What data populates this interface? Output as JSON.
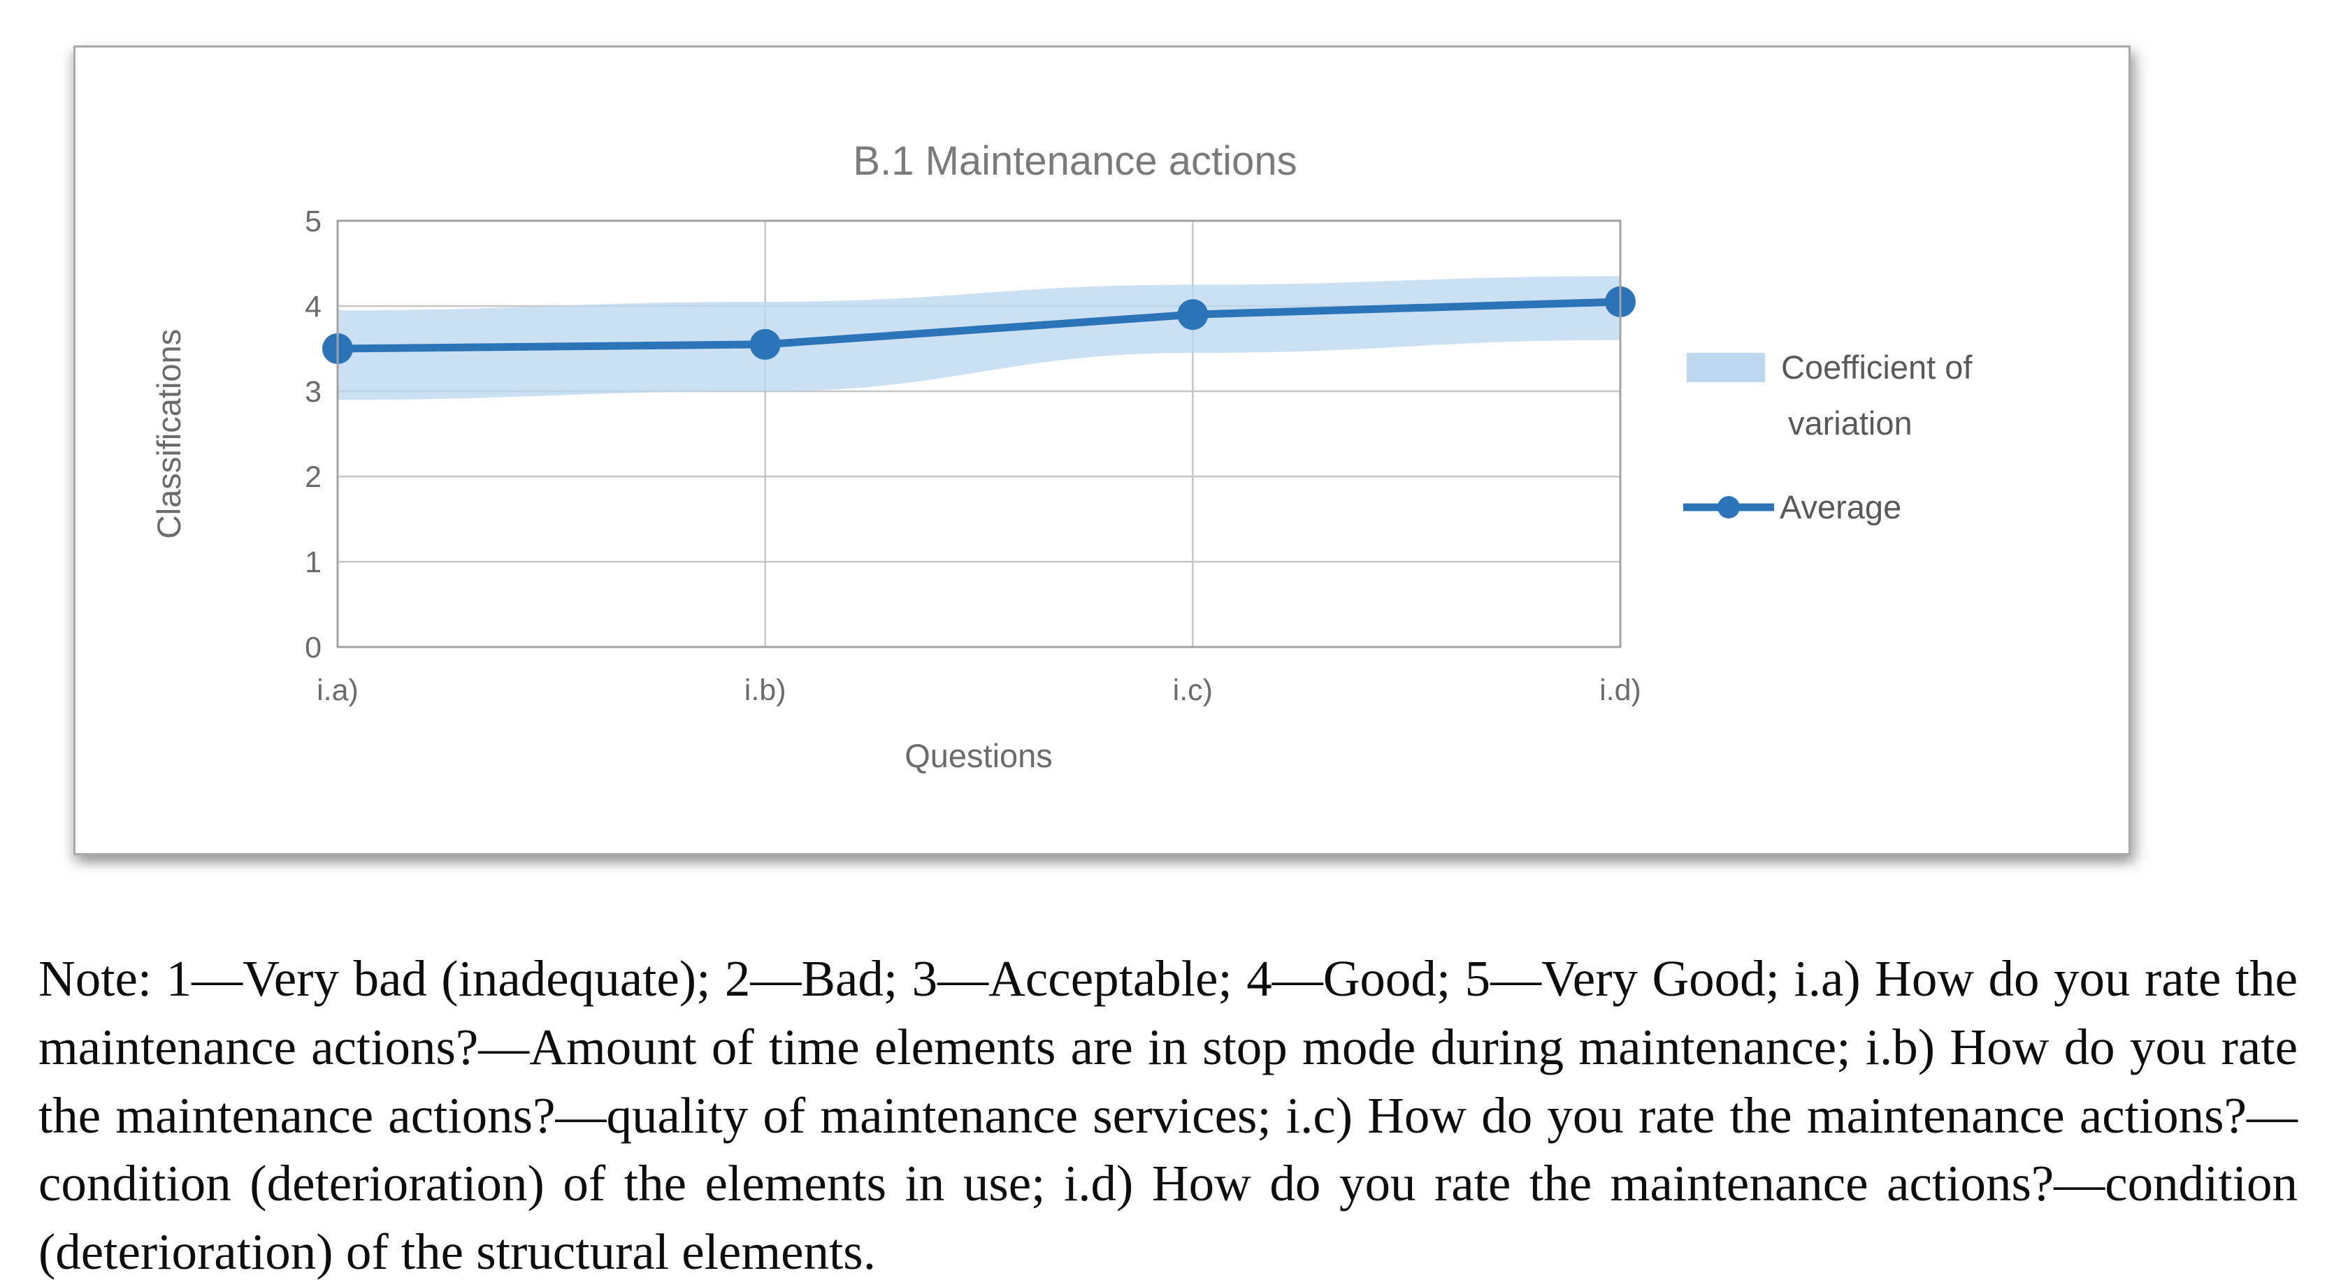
{
  "figure": {
    "note": "Note: 1—Very bad (inadequate); 2—Bad; 3—Acceptable; 4—Good; 5—Very Good; i.a) How do you rate the maintenance actions?—Amount of time elements are in stop mode during maintenance; i.b) How do you rate the maintenance actions?—quality of maintenance services; i.c) How do you rate the maintenance actions?—condition (deterioration) of the elements in use; i.d) How do you rate the maintenance actions?—condition (deterioration) of the structural elements."
  },
  "chart_data": {
    "type": "line",
    "title": "B.1 Maintenance actions",
    "xlabel": "Questions",
    "ylabel": "Classifications",
    "categories": [
      "i.a)",
      "i.b)",
      "i.c)",
      "i.d)"
    ],
    "ylim": [
      0,
      5
    ],
    "yticks": [
      0,
      1,
      2,
      3,
      4,
      5
    ],
    "grid": true,
    "legend_position": "right",
    "series": [
      {
        "name": "Coefficient of variation",
        "type": "band",
        "upper": [
          3.95,
          4.05,
          4.25,
          4.35
        ],
        "lower": [
          2.9,
          3.0,
          3.45,
          3.6
        ]
      },
      {
        "name": "Average",
        "type": "line-markers",
        "values": [
          3.5,
          3.55,
          3.9,
          4.05
        ]
      }
    ],
    "legend": {
      "cov": [
        "Coefficient of",
        "variation"
      ],
      "avg": [
        "Average"
      ]
    }
  },
  "colors": {
    "accent_blue": "#2c74b8",
    "band_blue": "#bdd7ee",
    "grid_gray": "#c6c6c6",
    "plot_border_gray": "#a3a3a3",
    "axis_text_gray": "#6b6b6b",
    "title_gray": "#7a7a7a",
    "legend_text_gray": "#595959",
    "frame_border_gray": "#a9a9a9"
  }
}
